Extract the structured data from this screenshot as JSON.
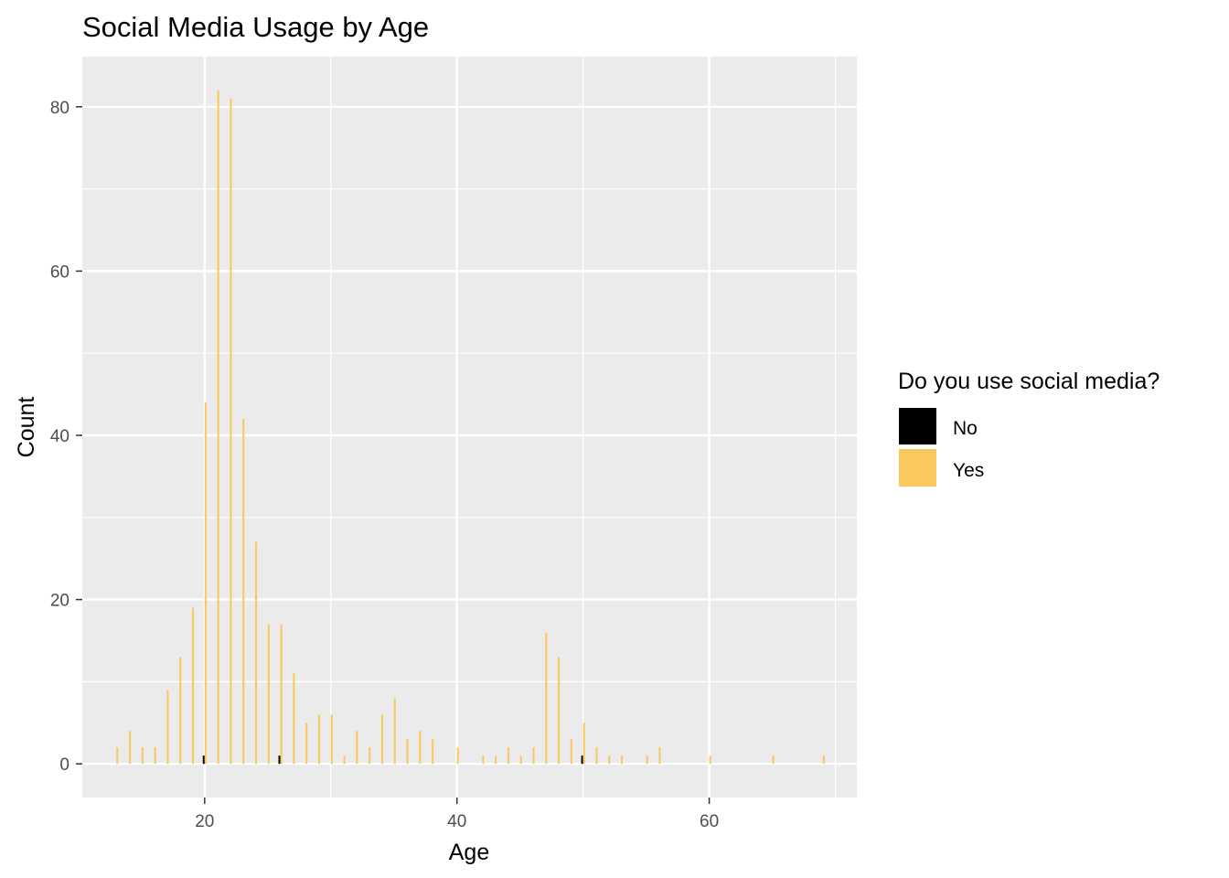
{
  "chart_data": {
    "type": "bar",
    "title": "Social Media Usage by Age",
    "xlabel": "Age",
    "ylabel": "Count",
    "xlim": [
      10.3,
      71.7
    ],
    "ylim": [
      -4.1,
      86.1
    ],
    "x_ticks": [
      20,
      40,
      60
    ],
    "y_ticks": [
      0,
      20,
      40,
      60,
      80
    ],
    "grid": true,
    "legend": {
      "title": "Do you use social media?",
      "position": "right",
      "entries": [
        {
          "label": "No",
          "color": "#000000"
        },
        {
          "label": "Yes",
          "color": "#F9C85F"
        }
      ]
    },
    "series": [
      {
        "name": "No",
        "color": "#000000",
        "points": [
          [
            20,
            1
          ],
          [
            26,
            1
          ],
          [
            50,
            1
          ]
        ]
      },
      {
        "name": "Yes",
        "color": "#F9C85F",
        "points": [
          [
            13,
            2
          ],
          [
            14,
            4
          ],
          [
            15,
            2
          ],
          [
            16,
            2
          ],
          [
            17,
            9
          ],
          [
            18,
            13
          ],
          [
            19,
            19
          ],
          [
            20,
            44
          ],
          [
            21,
            82
          ],
          [
            22,
            81
          ],
          [
            23,
            42
          ],
          [
            24,
            27
          ],
          [
            25,
            17
          ],
          [
            26,
            17
          ],
          [
            27,
            11
          ],
          [
            28,
            5
          ],
          [
            29,
            6
          ],
          [
            30,
            6
          ],
          [
            31,
            1
          ],
          [
            32,
            4
          ],
          [
            33,
            2
          ],
          [
            34,
            6
          ],
          [
            35,
            8
          ],
          [
            36,
            3
          ],
          [
            37,
            4
          ],
          [
            38,
            3
          ],
          [
            40,
            2
          ],
          [
            42,
            1
          ],
          [
            43,
            1
          ],
          [
            44,
            2
          ],
          [
            45,
            1
          ],
          [
            46,
            2
          ],
          [
            47,
            16
          ],
          [
            48,
            13
          ],
          [
            49,
            3
          ],
          [
            50,
            5
          ],
          [
            51,
            2
          ],
          [
            52,
            1
          ],
          [
            53,
            1
          ],
          [
            55,
            1
          ],
          [
            56,
            2
          ],
          [
            60,
            1
          ],
          [
            65,
            1
          ],
          [
            69,
            1
          ]
        ]
      }
    ]
  }
}
